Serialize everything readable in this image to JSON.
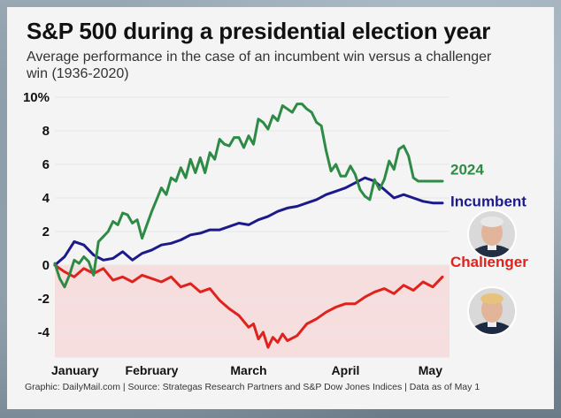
{
  "title": "S&P 500 during a presidential election year",
  "subtitle": "Average performance in the case of an incumbent win versus a challenger win (1936-2020)",
  "footer": "Graphic: DailyMail.com  |  Source: Strategas Research Partners and S&P Dow Jones Indices  |  Data as of May 1",
  "chart_data": {
    "type": "line",
    "title": "S&P 500 during a presidential election year",
    "subtitle": "Average performance in the case of an incumbent win versus a challenger win (1936-2020)",
    "xlabel": "",
    "ylabel": "",
    "x_ticks": [
      {
        "label": "January",
        "value": 0
      },
      {
        "label": "February",
        "value": 1
      },
      {
        "label": "March",
        "value": 2
      },
      {
        "label": "April",
        "value": 3
      },
      {
        "label": "May",
        "value": 4
      }
    ],
    "xlim": [
      0,
      4
    ],
    "y_ticks": [
      {
        "label": "10%",
        "value": 10
      },
      {
        "label": "8",
        "value": 8
      },
      {
        "label": "6",
        "value": 6
      },
      {
        "label": "4",
        "value": 4
      },
      {
        "label": "2",
        "value": 2
      },
      {
        "label": "0",
        "value": 0
      },
      {
        "label": "-2",
        "value": -2
      },
      {
        "label": "-4",
        "value": -4
      }
    ],
    "ylim": [
      -5.5,
      10.5
    ],
    "negative_region_color": "#f6dede",
    "series": [
      {
        "name": "2024",
        "color": "#2e8b45",
        "x": [
          0,
          0.05,
          0.1,
          0.15,
          0.2,
          0.25,
          0.3,
          0.35,
          0.4,
          0.45,
          0.5,
          0.55,
          0.6,
          0.65,
          0.7,
          0.75,
          0.8,
          0.85,
          0.9,
          0.95,
          1.0,
          1.05,
          1.1,
          1.15,
          1.2,
          1.25,
          1.3,
          1.35,
          1.4,
          1.45,
          1.5,
          1.55,
          1.6,
          1.65,
          1.7,
          1.75,
          1.8,
          1.85,
          1.9,
          1.95,
          2.0,
          2.05,
          2.1,
          2.15,
          2.2,
          2.25,
          2.3,
          2.35,
          2.4,
          2.45,
          2.5,
          2.55,
          2.6,
          2.65,
          2.7,
          2.75,
          2.8,
          2.85,
          2.9,
          2.95,
          3.0,
          3.05,
          3.1,
          3.15,
          3.2,
          3.25,
          3.3,
          3.35,
          3.4,
          3.45,
          3.5,
          3.55,
          3.6,
          3.65,
          3.7,
          3.75,
          3.8,
          3.85,
          3.9,
          3.95,
          4.0
        ],
        "values": [
          0.1,
          -0.8,
          -1.3,
          -0.6,
          0.3,
          0.1,
          0.5,
          0.2,
          -0.6,
          1.4,
          1.7,
          2.0,
          2.6,
          2.4,
          3.1,
          3.0,
          2.5,
          2.7,
          1.6,
          2.4,
          3.2,
          3.9,
          4.6,
          4.2,
          5.2,
          5.0,
          5.8,
          5.2,
          6.3,
          5.5,
          6.4,
          5.5,
          6.7,
          6.3,
          7.5,
          7.2,
          7.1,
          7.6,
          7.6,
          7.0,
          7.7,
          7.2,
          8.7,
          8.5,
          8.1,
          8.9,
          8.6,
          9.5,
          9.3,
          9.1,
          9.6,
          9.6,
          9.3,
          9.1,
          8.5,
          8.3,
          6.8,
          5.6,
          6.0,
          5.3,
          5.3,
          5.9,
          5.4,
          4.5,
          4.1,
          3.9,
          5.1,
          4.5,
          5.1,
          6.2,
          5.7,
          6.9,
          7.1,
          6.5,
          5.2,
          5.0,
          5.0,
          5.0,
          5.0,
          5.0,
          5.0
        ]
      },
      {
        "name": "Incumbent",
        "color": "#1c1a8a",
        "x": [
          0,
          0.1,
          0.2,
          0.3,
          0.4,
          0.5,
          0.6,
          0.7,
          0.8,
          0.9,
          1.0,
          1.1,
          1.2,
          1.3,
          1.4,
          1.5,
          1.6,
          1.7,
          1.8,
          1.9,
          2.0,
          2.1,
          2.2,
          2.3,
          2.4,
          2.5,
          2.6,
          2.7,
          2.8,
          2.9,
          3.0,
          3.1,
          3.2,
          3.3,
          3.4,
          3.5,
          3.6,
          3.7,
          3.8,
          3.9,
          4.0
        ],
        "values": [
          0.0,
          0.5,
          1.4,
          1.2,
          0.6,
          0.3,
          0.4,
          0.8,
          0.3,
          0.7,
          0.9,
          1.2,
          1.3,
          1.5,
          1.8,
          1.9,
          2.1,
          2.1,
          2.3,
          2.5,
          2.4,
          2.7,
          2.9,
          3.2,
          3.4,
          3.5,
          3.7,
          3.9,
          4.2,
          4.4,
          4.6,
          4.9,
          5.2,
          5.0,
          4.5,
          4.0,
          4.2,
          4.0,
          3.8,
          3.7,
          3.7
        ]
      },
      {
        "name": "Challenger",
        "color": "#e0221d",
        "x": [
          0,
          0.1,
          0.2,
          0.3,
          0.4,
          0.5,
          0.6,
          0.7,
          0.8,
          0.9,
          1.0,
          1.1,
          1.2,
          1.3,
          1.4,
          1.5,
          1.6,
          1.7,
          1.8,
          1.9,
          2.0,
          2.05,
          2.1,
          2.15,
          2.2,
          2.25,
          2.3,
          2.35,
          2.4,
          2.5,
          2.6,
          2.7,
          2.8,
          2.9,
          3.0,
          3.1,
          3.2,
          3.3,
          3.4,
          3.5,
          3.6,
          3.7,
          3.8,
          3.9,
          4.0
        ],
        "values": [
          0.0,
          -0.4,
          -0.7,
          -0.2,
          -0.5,
          -0.2,
          -0.9,
          -0.7,
          -1.0,
          -0.6,
          -0.8,
          -1.0,
          -0.7,
          -1.3,
          -1.1,
          -1.6,
          -1.4,
          -2.1,
          -2.6,
          -3.0,
          -3.7,
          -3.5,
          -4.4,
          -4.0,
          -4.9,
          -4.3,
          -4.6,
          -4.1,
          -4.5,
          -4.2,
          -3.5,
          -3.2,
          -2.8,
          -2.5,
          -2.3,
          -2.3,
          -1.9,
          -1.6,
          -1.4,
          -1.7,
          -1.2,
          -1.5,
          -1.0,
          -1.3,
          -0.7
        ]
      }
    ]
  }
}
